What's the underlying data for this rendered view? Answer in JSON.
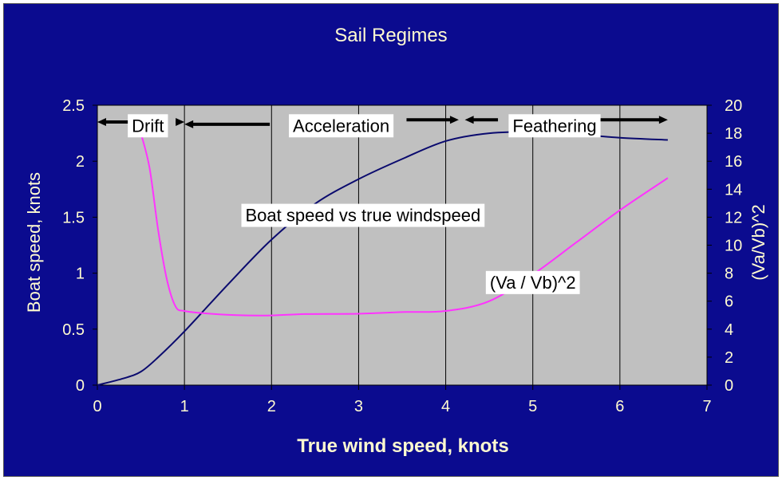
{
  "chart_data": {
    "type": "line",
    "title": "Sail Regimes",
    "xlabel": "True wind speed, knots",
    "ylabel_left": "Boat speed, knots",
    "ylabel_right": "(Va/Vb)^2",
    "xlim": [
      0,
      7
    ],
    "ylim_left": [
      0,
      2.5
    ],
    "ylim_right": [
      0,
      20
    ],
    "x_ticks": [
      "0",
      "1",
      "2",
      "3",
      "4",
      "5",
      "6",
      "7"
    ],
    "y_ticks_left": [
      "0",
      "0.5",
      "1",
      "1.5",
      "2",
      "2.5"
    ],
    "y_ticks_right": [
      "0",
      "2",
      "4",
      "6",
      "8",
      "10",
      "12",
      "14",
      "16",
      "18",
      "20"
    ],
    "grid": "vertical",
    "series": [
      {
        "axis": "left",
        "color": "#0a0a6e",
        "points": [
          [
            0,
            0
          ],
          [
            0.3,
            0.06
          ],
          [
            0.5,
            0.12
          ],
          [
            0.7,
            0.25
          ],
          [
            1.0,
            0.48
          ],
          [
            1.5,
            0.9
          ],
          [
            2.0,
            1.3
          ],
          [
            2.5,
            1.62
          ],
          [
            3.0,
            1.84
          ],
          [
            3.5,
            2.02
          ],
          [
            4.0,
            2.18
          ],
          [
            4.5,
            2.25
          ],
          [
            5.0,
            2.26
          ],
          [
            5.5,
            2.24
          ],
          [
            6.0,
            2.21
          ],
          [
            6.55,
            2.19
          ]
        ]
      },
      {
        "axis": "right",
        "color": "#ff33ff",
        "points": [
          [
            0.5,
            18.0
          ],
          [
            0.6,
            15.5
          ],
          [
            0.7,
            11.0
          ],
          [
            0.8,
            7.5
          ],
          [
            0.9,
            5.6
          ],
          [
            1.0,
            5.3
          ],
          [
            1.2,
            5.15
          ],
          [
            1.6,
            5.0
          ],
          [
            2.0,
            4.98
          ],
          [
            2.4,
            5.08
          ],
          [
            3.0,
            5.1
          ],
          [
            3.5,
            5.22
          ],
          [
            4.0,
            5.3
          ],
          [
            4.5,
            6.0
          ],
          [
            5.0,
            7.9
          ],
          [
            5.5,
            10.2
          ],
          [
            6.0,
            12.5
          ],
          [
            6.55,
            14.8
          ]
        ]
      }
    ],
    "annotations": [
      {
        "text": "Drift",
        "x": 0.58,
        "y": 2.32
      },
      {
        "text": "Acceleration",
        "x": 2.8,
        "y": 2.32
      },
      {
        "text": "Feathering",
        "x": 5.25,
        "y": 2.32
      },
      {
        "text": "Boat speed vs true windspeed",
        "x": 3.05,
        "y": 1.52
      },
      {
        "text": "(Va / Vb)^2",
        "x": 5.0,
        "y": 0.92
      }
    ],
    "arrows": [
      {
        "from": 0.4,
        "to": 0.0,
        "y": 2.35
      },
      {
        "from": 0.9,
        "to": 1.0,
        "y": 2.35
      },
      {
        "from": 1.98,
        "to": 1.0,
        "y": 2.33
      },
      {
        "from": 3.55,
        "to": 4.15,
        "y": 2.37
      },
      {
        "from": 4.6,
        "to": 4.22,
        "y": 2.37
      },
      {
        "from": 5.75,
        "to": 6.55,
        "y": 2.37
      }
    ]
  }
}
